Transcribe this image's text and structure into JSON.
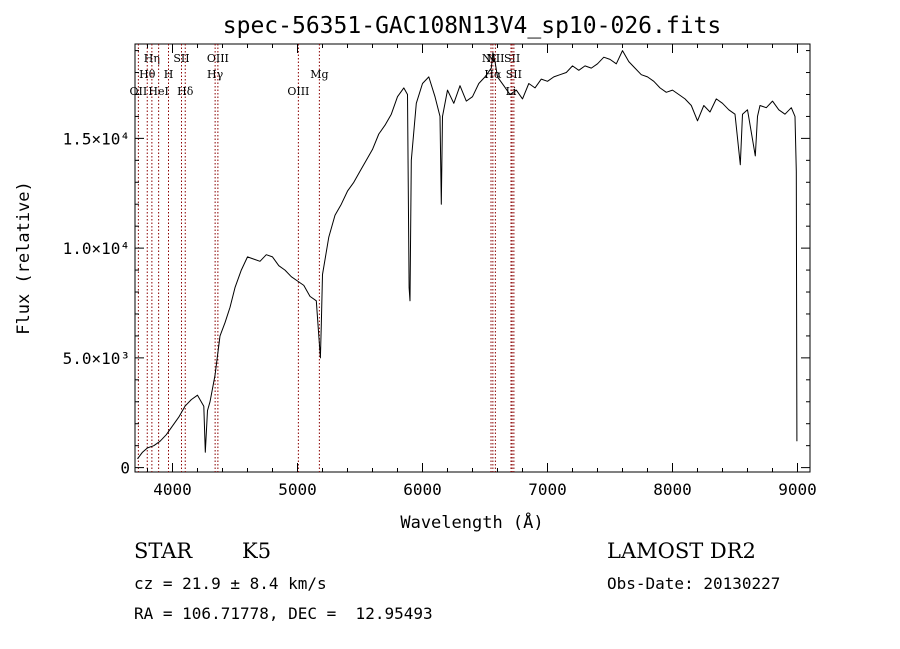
{
  "chart_data": {
    "type": "line",
    "title": "spec-56351-GAC108N13V4_sp10-026.fits",
    "xlabel": "Wavelength (Å)",
    "ylabel": "Flux (relative)",
    "xlim": [
      3700,
      9100
    ],
    "ylim": [
      -200,
      19300
    ],
    "x_ticks": [
      {
        "value": 4000,
        "label": "4000"
      },
      {
        "value": 5000,
        "label": "5000"
      },
      {
        "value": 6000,
        "label": "6000"
      },
      {
        "value": 7000,
        "label": "7000"
      },
      {
        "value": 8000,
        "label": "8000"
      },
      {
        "value": 9000,
        "label": "9000"
      }
    ],
    "y_ticks": [
      {
        "value": 0,
        "label": "0"
      },
      {
        "value": 5000,
        "label": "5.0×10³"
      },
      {
        "value": 10000,
        "label": "1.0×10⁴"
      },
      {
        "value": 15000,
        "label": "1.5×10⁴"
      }
    ],
    "grid": false,
    "line_color": "#000000",
    "marker_color": "#8b0000",
    "series": [
      {
        "x": [
          3720,
          3760,
          3800,
          3850,
          3900,
          3950,
          4000,
          4050,
          4100,
          4150,
          4200,
          4250,
          4262,
          4280,
          4300,
          4340,
          4380,
          4420,
          4460,
          4500,
          4550,
          4600,
          4650,
          4700,
          4750,
          4800,
          4850,
          4900,
          4950,
          5000,
          5050,
          5100,
          5150,
          5170,
          5183,
          5190,
          5200,
          5250,
          5300,
          5350,
          5400,
          5450,
          5500,
          5550,
          5600,
          5650,
          5700,
          5750,
          5800,
          5850,
          5880,
          5893,
          5900,
          5910,
          5950,
          6000,
          6050,
          6100,
          6140,
          6150,
          6160,
          6200,
          6250,
          6300,
          6350,
          6400,
          6450,
          6500,
          6550,
          6563,
          6580,
          6600,
          6650,
          6700,
          6750,
          6800,
          6850,
          6900,
          6950,
          7000,
          7050,
          7100,
          7150,
          7200,
          7250,
          7300,
          7350,
          7400,
          7450,
          7500,
          7550,
          7600,
          7650,
          7700,
          7750,
          7800,
          7850,
          7900,
          7950,
          8000,
          8050,
          8100,
          8150,
          8200,
          8250,
          8300,
          8350,
          8400,
          8450,
          8500,
          8542,
          8560,
          8600,
          8662,
          8680,
          8700,
          8750,
          8800,
          8850,
          8900,
          8950,
          8980,
          8990,
          8995
        ],
        "y": [
          400,
          700,
          900,
          1000,
          1200,
          1500,
          1900,
          2300,
          2800,
          3100,
          3300,
          2800,
          700,
          2600,
          3000,
          4200,
          6000,
          6600,
          7300,
          8200,
          9000,
          9600,
          9500,
          9400,
          9700,
          9600,
          9200,
          9000,
          8700,
          8500,
          8300,
          7800,
          7600,
          6000,
          5000,
          6500,
          8800,
          10500,
          11500,
          12000,
          12600,
          13000,
          13500,
          14000,
          14500,
          15200,
          15600,
          16100,
          16900,
          17300,
          17000,
          8200,
          7600,
          14000,
          16600,
          17500,
          17800,
          16900,
          16000,
          12000,
          16000,
          17200,
          16600,
          17400,
          16700,
          16900,
          17500,
          17800,
          18200,
          18900,
          18500,
          17800,
          17400,
          17000,
          17200,
          16800,
          17500,
          17300,
          17700,
          17600,
          17800,
          17900,
          18000,
          18300,
          18100,
          18300,
          18200,
          18400,
          18700,
          18600,
          18400,
          19000,
          18500,
          18200,
          17900,
          17800,
          17600,
          17300,
          17100,
          17200,
          17000,
          16800,
          16500,
          15800,
          16500,
          16200,
          16800,
          16600,
          16300,
          16100,
          13800,
          16100,
          16300,
          14200,
          16000,
          16500,
          16400,
          16700,
          16300,
          16100,
          16400,
          16000,
          13500,
          1200
        ]
      }
    ],
    "lines": [
      {
        "label": "OII",
        "x": 3727,
        "row": 3
      },
      {
        "label": "Hθ",
        "x": 3798,
        "row": 2
      },
      {
        "label": "Hη",
        "x": 3835,
        "row": 1
      },
      {
        "label": "HeI",
        "x": 3889,
        "row": 3
      },
      {
        "label": "SII",
        "x": 4072,
        "row": 1
      },
      {
        "label": "H",
        "x": 3968,
        "row": 2
      },
      {
        "label": "Hδ",
        "x": 4102,
        "row": 3
      },
      {
        "label": "OIII",
        "x": 4363,
        "row": 1
      },
      {
        "label": "Hγ",
        "x": 4341,
        "row": 2
      },
      {
        "label": "OIII",
        "x": 5007,
        "row": 3
      },
      {
        "label": "Mg",
        "x": 5175,
        "row": 2
      },
      {
        "label": "NII",
        "x": 6548,
        "row": 1
      },
      {
        "label": "Hα",
        "x": 6563,
        "row": 2
      },
      {
        "label": "NII",
        "x": 6583,
        "row": 1
      },
      {
        "label": "SII",
        "x": 6717,
        "row": 1
      },
      {
        "label": "SII",
        "x": 6731,
        "row": 2
      },
      {
        "label": "Li",
        "x": 6708,
        "row": 3
      }
    ]
  },
  "info": {
    "object_class": "STAR",
    "subclass": "K5",
    "survey": "LAMOST DR2",
    "cz": "cz = 21.9 ± 8.4 km/s",
    "obs_date": "Obs-Date: 20130227",
    "coords": "RA = 106.71778, DEC =  12.95493"
  }
}
